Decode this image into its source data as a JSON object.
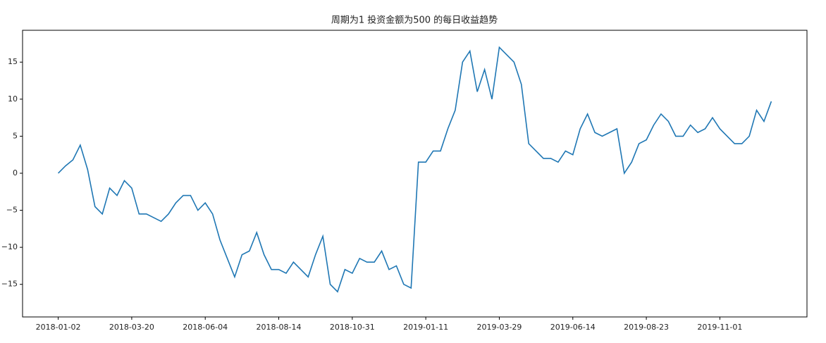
{
  "chart_data": {
    "type": "line",
    "title": "周期为1 投资金额为500 的每日收益趋势",
    "categories": [
      "2018-01-02",
      null,
      null,
      null,
      null,
      null,
      null,
      null,
      null,
      null,
      "2018-03-20",
      null,
      null,
      null,
      null,
      null,
      null,
      null,
      null,
      null,
      "2018-06-04",
      null,
      null,
      null,
      null,
      null,
      null,
      null,
      null,
      null,
      "2018-08-14",
      null,
      null,
      null,
      null,
      null,
      null,
      null,
      null,
      null,
      "2018-10-31",
      null,
      null,
      null,
      null,
      null,
      null,
      null,
      null,
      null,
      "2019-01-11",
      null,
      null,
      null,
      null,
      null,
      null,
      null,
      null,
      null,
      "2019-03-29",
      null,
      null,
      null,
      null,
      null,
      null,
      null,
      null,
      null,
      "2019-06-14",
      null,
      null,
      null,
      null,
      null,
      null,
      null,
      null,
      null,
      "2019-08-23",
      null,
      null,
      null,
      null,
      null,
      null,
      null,
      null,
      null,
      "2019-11-01",
      null,
      null,
      null,
      null,
      null,
      null,
      null
    ],
    "values": [
      0,
      1.0,
      1.8,
      3.8,
      0.5,
      -4.5,
      -5.5,
      -2.0,
      -3.0,
      -1.0,
      -2.0,
      -5.5,
      -5.5,
      -6.0,
      -6.5,
      -5.5,
      -4.0,
      -3.0,
      -3.0,
      -5.0,
      -4.0,
      -5.5,
      -9,
      -11.5,
      -14,
      -11,
      -10.5,
      -8,
      -11,
      -13,
      -13,
      -13.5,
      -12,
      -13,
      -14,
      -11,
      -8.5,
      -15,
      -16,
      -13,
      -13.5,
      -11.5,
      -12,
      -12,
      -10.5,
      -13,
      -12.5,
      -15,
      -15.5,
      1.5,
      1.5,
      3,
      3,
      6,
      8.5,
      15,
      16.5,
      11,
      14,
      10,
      17,
      16,
      15,
      12,
      4,
      3,
      2,
      2,
      1.5,
      3,
      2.5,
      6,
      8,
      5.5,
      5,
      5.5,
      6,
      0,
      1.5,
      4,
      4.5,
      6.5,
      8,
      7,
      5,
      5,
      6.5,
      5.5,
      6,
      7.5,
      6,
      5,
      4,
      4,
      5,
      8.5,
      7,
      9.7
    ],
    "color": "#1f77b4",
    "ylim": [
      -19.4,
      19.3
    ],
    "yticks": [
      {
        "value": -15,
        "label": "−15"
      },
      {
        "value": -10,
        "label": "−10"
      },
      {
        "value": -5,
        "label": "−5"
      },
      0,
      5,
      10,
      15
    ]
  }
}
